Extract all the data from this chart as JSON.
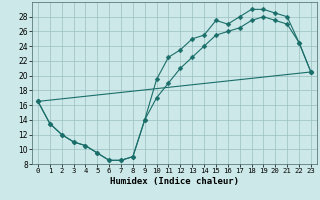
{
  "xlabel": "Humidex (Indice chaleur)",
  "background_color": "#cce8e8",
  "grid_color": "#9bbfbf",
  "line_color": "#1a6e6a",
  "ylim": [
    8,
    30
  ],
  "xlim": [
    -0.5,
    23.5
  ],
  "yticks": [
    8,
    10,
    12,
    14,
    16,
    18,
    20,
    22,
    24,
    26,
    28
  ],
  "xticks": [
    0,
    1,
    2,
    3,
    4,
    5,
    6,
    7,
    8,
    9,
    10,
    11,
    12,
    13,
    14,
    15,
    16,
    17,
    18,
    19,
    20,
    21,
    22,
    23
  ],
  "line1_x": [
    0,
    1,
    2,
    3,
    4,
    5,
    6,
    7,
    8,
    9,
    10,
    11,
    12,
    13,
    14,
    15,
    16,
    17,
    18,
    19,
    20,
    21,
    22,
    23
  ],
  "line1_y": [
    16.5,
    13.5,
    12.0,
    11.0,
    10.5,
    9.5,
    8.5,
    8.5,
    9.0,
    14.0,
    19.5,
    22.5,
    23.5,
    25.0,
    25.5,
    27.5,
    27.0,
    28.0,
    29.0,
    29.0,
    28.5,
    28.0,
    24.5,
    20.5
  ],
  "line2_x": [
    0,
    1,
    2,
    3,
    4,
    5,
    6,
    7,
    8,
    9,
    10,
    11,
    12,
    13,
    14,
    15,
    16,
    17,
    18,
    19,
    20,
    21,
    22,
    23
  ],
  "line2_y": [
    16.5,
    13.5,
    12.0,
    11.0,
    10.5,
    9.5,
    8.5,
    8.5,
    9.0,
    14.0,
    17.0,
    19.0,
    21.0,
    22.5,
    24.0,
    25.5,
    26.0,
    26.5,
    27.5,
    28.0,
    27.5,
    27.0,
    24.5,
    20.5
  ],
  "line3_x": [
    0,
    23
  ],
  "line3_y": [
    16.5,
    20.5
  ]
}
